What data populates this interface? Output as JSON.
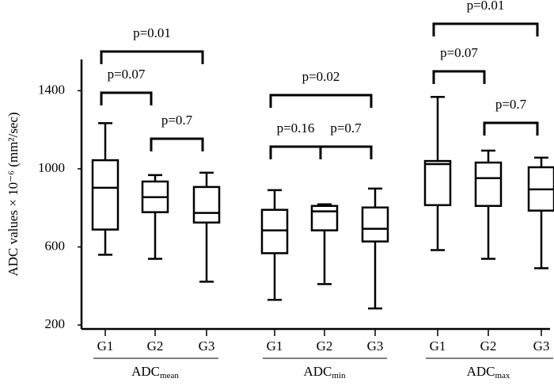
{
  "chart_data": {
    "type": "box",
    "y_label": "ADC values × 10⁻⁶ (mm²/sec)",
    "ylim": [
      180,
      1560
    ],
    "yticks": [
      200,
      600,
      1000,
      1400
    ],
    "groups": [
      {
        "name": "ADC",
        "name_sub": "mean",
        "categories": [
          "G1",
          "G2",
          "G3"
        ],
        "boxes": [
          {
            "min": 560,
            "q1": 689,
            "median": 903,
            "q3": 1044,
            "max": 1234
          },
          {
            "min": 539,
            "q1": 778,
            "median": 855,
            "q3": 935,
            "max": 968
          },
          {
            "min": 422,
            "q1": 725,
            "median": 774,
            "q3": 907,
            "max": 980
          }
        ],
        "annotations": [
          "p=0.01",
          "p=0.07",
          "p=0.7"
        ]
      },
      {
        "name": "ADC",
        "name_sub": "min",
        "categories": [
          "G1",
          "G2",
          "G3"
        ],
        "boxes": [
          {
            "min": 329,
            "q1": 568,
            "median": 685,
            "q3": 790,
            "max": 891
          },
          {
            "min": 410,
            "q1": 685,
            "median": 782,
            "q3": 810,
            "max": 818
          },
          {
            "min": 285,
            "q1": 628,
            "median": 693,
            "q3": 802,
            "max": 899
          }
        ],
        "annotations": [
          "p=0.02",
          "p=0.16",
          "p=0.7"
        ]
      },
      {
        "name": "ADC",
        "name_sub": "max",
        "categories": [
          "G1",
          "G2",
          "G3"
        ],
        "boxes": [
          {
            "min": 584,
            "q1": 814,
            "median": 1024,
            "q3": 1040,
            "max": 1368
          },
          {
            "min": 539,
            "q1": 810,
            "median": 952,
            "q3": 1032,
            "max": 1093
          },
          {
            "min": 491,
            "q1": 786,
            "median": 895,
            "q3": 1008,
            "max": 1057
          }
        ],
        "annotations": [
          "p=0.01",
          "p=0.07",
          "p=0.7"
        ]
      }
    ]
  }
}
